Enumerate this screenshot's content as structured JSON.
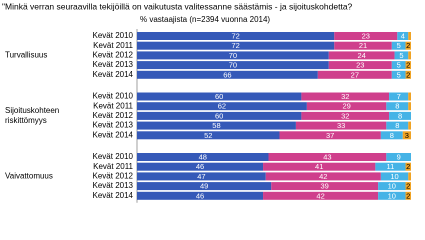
{
  "chart_data": {
    "type": "stacked-bar-horizontal",
    "title": "\"Minkä verran seuraavilla tekijöillä on vaikutusta valitessanne säästämis - ja sijoituskohdetta?",
    "subtitle": "% vastaajista (n=2394 vuonna 2014)",
    "group_labels": [
      [
        "Turvallisuus"
      ],
      [
        "Sijoituskohteen",
        "riskittömyys"
      ],
      [
        "Vaivattomuus"
      ]
    ],
    "categories": [
      "Kevät 2010",
      "Kevät 2011",
      "Kevät 2012",
      "Kevät 2013",
      "Kevät 2014",
      "Kevät 2010",
      "Kevät 2011",
      "Kevät 2012",
      "Kevät 2013",
      "Kevät 2014",
      "Kevät 2010",
      "Kevät 2011",
      "Kevät 2012",
      "Kevät 2013",
      "Kevät 2014"
    ],
    "xlim": [
      0,
      100
    ],
    "series": [
      {
        "color": "#3559b8",
        "values": [
          72,
          72,
          70,
          70,
          66,
          60,
          62,
          60,
          58,
          52,
          48,
          46,
          47,
          49,
          46
        ]
      },
      {
        "color": "#cf3f8c",
        "values": [
          23,
          21,
          24,
          23,
          27,
          32,
          29,
          32,
          33,
          37,
          43,
          41,
          42,
          39,
          42
        ]
      },
      {
        "color": "#45b3e6",
        "values": [
          4,
          5,
          5,
          5,
          5,
          7,
          8,
          8,
          8,
          8,
          9,
          11,
          10,
          10,
          10
        ]
      },
      {
        "color": "#f0a323",
        "values": [
          1,
          2,
          1,
          2,
          2,
          1,
          1,
          0,
          1,
          3,
          0,
          2,
          1,
          2,
          2
        ]
      }
    ]
  }
}
